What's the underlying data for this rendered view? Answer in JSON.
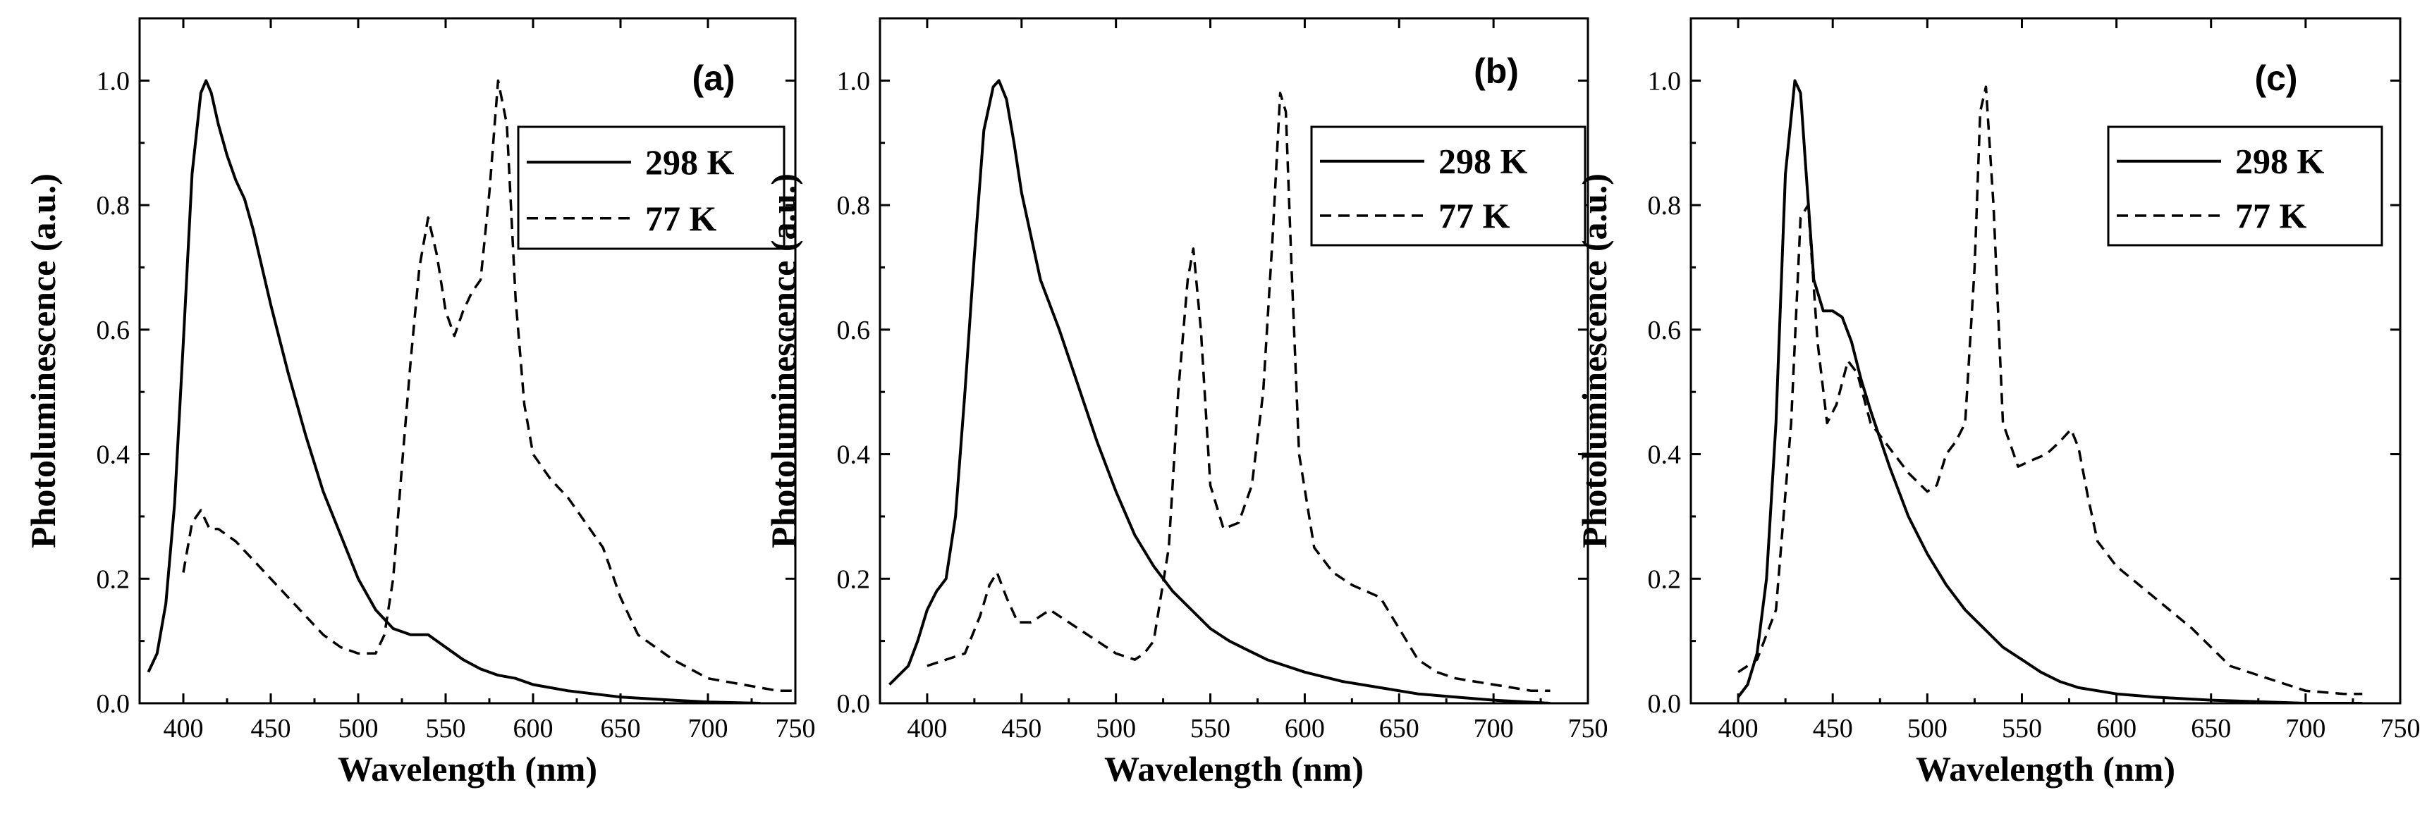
{
  "chart_data": [
    {
      "type": "line",
      "panel_label": "(a)",
      "xlabel": "Wavelength  (nm)",
      "ylabel": "Photoluminescence  (a.u.)",
      "xlim": [
        375,
        750
      ],
      "ylim": [
        0,
        1.1
      ],
      "xticks": [
        400,
        450,
        500,
        550,
        600,
        650,
        700,
        750
      ],
      "yticks": [
        0.0,
        0.2,
        0.4,
        0.6,
        0.8,
        1.0
      ],
      "legend_position": "top-right",
      "series": [
        {
          "name": "298  K",
          "style": "solid",
          "x": [
            380,
            385,
            390,
            395,
            400,
            405,
            410,
            413,
            416,
            420,
            425,
            430,
            435,
            440,
            450,
            460,
            470,
            480,
            490,
            500,
            510,
            520,
            530,
            540,
            545,
            550,
            560,
            570,
            580,
            590,
            600,
            620,
            650,
            680,
            700,
            730
          ],
          "y": [
            0.05,
            0.08,
            0.16,
            0.32,
            0.58,
            0.85,
            0.98,
            1.0,
            0.98,
            0.93,
            0.88,
            0.84,
            0.81,
            0.76,
            0.64,
            0.53,
            0.43,
            0.34,
            0.27,
            0.2,
            0.15,
            0.12,
            0.11,
            0.11,
            0.1,
            0.09,
            0.07,
            0.055,
            0.045,
            0.04,
            0.03,
            0.02,
            0.01,
            0.005,
            0.002,
            0.0
          ]
        },
        {
          "name": "77  K",
          "style": "dashed",
          "x": [
            400,
            405,
            410,
            415,
            420,
            430,
            440,
            450,
            460,
            470,
            480,
            490,
            500,
            510,
            515,
            520,
            525,
            530,
            535,
            540,
            545,
            550,
            555,
            560,
            565,
            570,
            575,
            580,
            585,
            590,
            595,
            600,
            610,
            620,
            630,
            640,
            650,
            660,
            680,
            700,
            720,
            740,
            750
          ],
          "y": [
            0.21,
            0.29,
            0.31,
            0.28,
            0.28,
            0.26,
            0.23,
            0.2,
            0.17,
            0.14,
            0.11,
            0.09,
            0.08,
            0.08,
            0.11,
            0.2,
            0.38,
            0.55,
            0.7,
            0.78,
            0.72,
            0.63,
            0.59,
            0.63,
            0.66,
            0.68,
            0.82,
            1.0,
            0.93,
            0.65,
            0.48,
            0.4,
            0.36,
            0.33,
            0.29,
            0.25,
            0.17,
            0.11,
            0.07,
            0.04,
            0.03,
            0.02,
            0.02
          ]
        }
      ]
    },
    {
      "type": "line",
      "panel_label": "(b)",
      "xlabel": "Wavelength  (nm)",
      "ylabel": "Photoluminescence  (a.u.)",
      "xlim": [
        375,
        750
      ],
      "ylim": [
        0,
        1.1
      ],
      "xticks": [
        400,
        450,
        500,
        550,
        600,
        650,
        700,
        750
      ],
      "yticks": [
        0.0,
        0.2,
        0.4,
        0.6,
        0.8,
        1.0
      ],
      "legend_position": "top-right",
      "series": [
        {
          "name": "298  K",
          "style": "solid",
          "x": [
            380,
            390,
            395,
            400,
            405,
            410,
            415,
            420,
            425,
            430,
            435,
            438,
            442,
            446,
            450,
            460,
            470,
            480,
            490,
            500,
            510,
            520,
            530,
            540,
            550,
            560,
            570,
            580,
            590,
            600,
            620,
            640,
            660,
            680,
            700,
            730
          ],
          "y": [
            0.03,
            0.06,
            0.1,
            0.15,
            0.18,
            0.2,
            0.3,
            0.5,
            0.72,
            0.92,
            0.99,
            1.0,
            0.97,
            0.9,
            0.82,
            0.68,
            0.6,
            0.51,
            0.42,
            0.34,
            0.27,
            0.22,
            0.18,
            0.15,
            0.12,
            0.1,
            0.085,
            0.07,
            0.06,
            0.05,
            0.035,
            0.025,
            0.015,
            0.01,
            0.005,
            0.0
          ]
        },
        {
          "name": "77  K",
          "style": "dashed",
          "x": [
            400,
            410,
            420,
            428,
            433,
            437,
            442,
            448,
            455,
            465,
            475,
            490,
            500,
            510,
            515,
            520,
            528,
            533,
            538,
            541,
            545,
            550,
            557,
            565,
            572,
            578,
            583,
            587,
            590,
            593,
            597,
            605,
            615,
            625,
            640,
            650,
            660,
            670,
            680,
            700,
            720,
            730
          ],
          "y": [
            0.06,
            0.07,
            0.08,
            0.14,
            0.19,
            0.21,
            0.17,
            0.13,
            0.13,
            0.15,
            0.13,
            0.1,
            0.08,
            0.07,
            0.08,
            0.1,
            0.25,
            0.5,
            0.68,
            0.73,
            0.6,
            0.35,
            0.28,
            0.29,
            0.35,
            0.5,
            0.75,
            0.98,
            0.95,
            0.7,
            0.4,
            0.25,
            0.21,
            0.19,
            0.17,
            0.12,
            0.07,
            0.05,
            0.04,
            0.03,
            0.02,
            0.02
          ]
        }
      ]
    },
    {
      "type": "line",
      "panel_label": "(c)",
      "xlabel": "Wavelength  (nm)",
      "ylabel": "Photoluminescence  (a.u.)",
      "xlim": [
        375,
        750
      ],
      "ylim": [
        0,
        1.1
      ],
      "xticks": [
        400,
        450,
        500,
        550,
        600,
        650,
        700,
        750
      ],
      "yticks": [
        0.0,
        0.2,
        0.4,
        0.6,
        0.8,
        1.0
      ],
      "legend_position": "top-right",
      "series": [
        {
          "name": "298  K",
          "style": "solid",
          "x": [
            400,
            405,
            410,
            415,
            420,
            425,
            430,
            433,
            436,
            440,
            445,
            450,
            455,
            460,
            465,
            470,
            480,
            490,
            500,
            510,
            520,
            530,
            540,
            550,
            560,
            570,
            580,
            600,
            620,
            650,
            680,
            700,
            730
          ],
          "y": [
            0.01,
            0.03,
            0.08,
            0.2,
            0.45,
            0.85,
            1.0,
            0.98,
            0.85,
            0.68,
            0.63,
            0.63,
            0.62,
            0.58,
            0.52,
            0.47,
            0.38,
            0.3,
            0.24,
            0.19,
            0.15,
            0.12,
            0.09,
            0.07,
            0.05,
            0.035,
            0.025,
            0.015,
            0.01,
            0.005,
            0.002,
            0.0,
            0.0
          ]
        },
        {
          "name": "77  K",
          "style": "dashed",
          "x": [
            400,
            410,
            420,
            428,
            433,
            437,
            442,
            447,
            452,
            458,
            463,
            470,
            480,
            490,
            500,
            505,
            510,
            515,
            520,
            525,
            528,
            531,
            535,
            540,
            548,
            555,
            563,
            570,
            576,
            580,
            585,
            590,
            600,
            620,
            640,
            660,
            680,
            700,
            720,
            730
          ],
          "y": [
            0.05,
            0.07,
            0.15,
            0.45,
            0.78,
            0.8,
            0.58,
            0.45,
            0.48,
            0.55,
            0.53,
            0.45,
            0.41,
            0.37,
            0.34,
            0.35,
            0.4,
            0.42,
            0.45,
            0.7,
            0.95,
            0.99,
            0.8,
            0.45,
            0.38,
            0.39,
            0.4,
            0.42,
            0.44,
            0.41,
            0.33,
            0.26,
            0.22,
            0.17,
            0.12,
            0.06,
            0.04,
            0.02,
            0.015,
            0.015
          ]
        }
      ]
    }
  ]
}
